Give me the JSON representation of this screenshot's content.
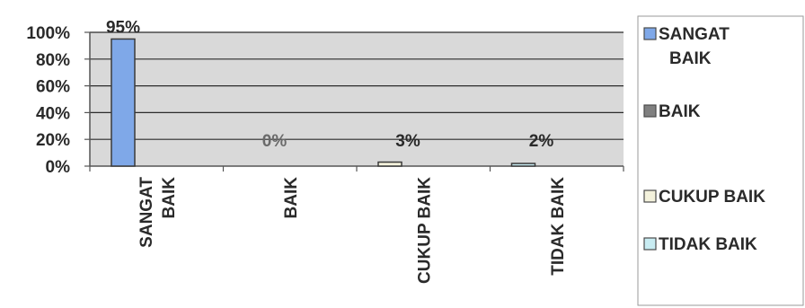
{
  "chart_data": {
    "type": "bar",
    "categories": [
      "SANGAT BAIK",
      "BAIK",
      "CUKUP BAIK",
      "TIDAK BAIK"
    ],
    "category_lines": [
      [
        "SANGAT",
        "BAIK"
      ],
      [
        "BAIK"
      ],
      [
        "CUKUP BAIK"
      ],
      [
        "TIDAK BAIK"
      ]
    ],
    "values": [
      95,
      0,
      3,
      2
    ],
    "data_labels": [
      "95%",
      "0%",
      "3%",
      "2%"
    ],
    "ylim": [
      0,
      100
    ],
    "yticks": [
      "0%",
      "20%",
      "40%",
      "60%",
      "80%",
      "100%"
    ],
    "grid": true,
    "plot_background": "#d9d9d9",
    "bar_colors": [
      "#7fa8e8",
      "#808080",
      "#f4f2dc",
      "#c8ecf2"
    ],
    "legend_position": "right",
    "legend": [
      {
        "lines": [
          "SANGAT",
          "BAIK"
        ],
        "color": "#7fa8e8"
      },
      {
        "lines": [
          "BAIK"
        ],
        "color": "#808080"
      },
      {
        "lines": [
          "CUKUP BAIK"
        ],
        "color": "#f4f2dc"
      },
      {
        "lines": [
          "TIDAK BAIK"
        ],
        "color": "#c8ecf2"
      }
    ]
  }
}
